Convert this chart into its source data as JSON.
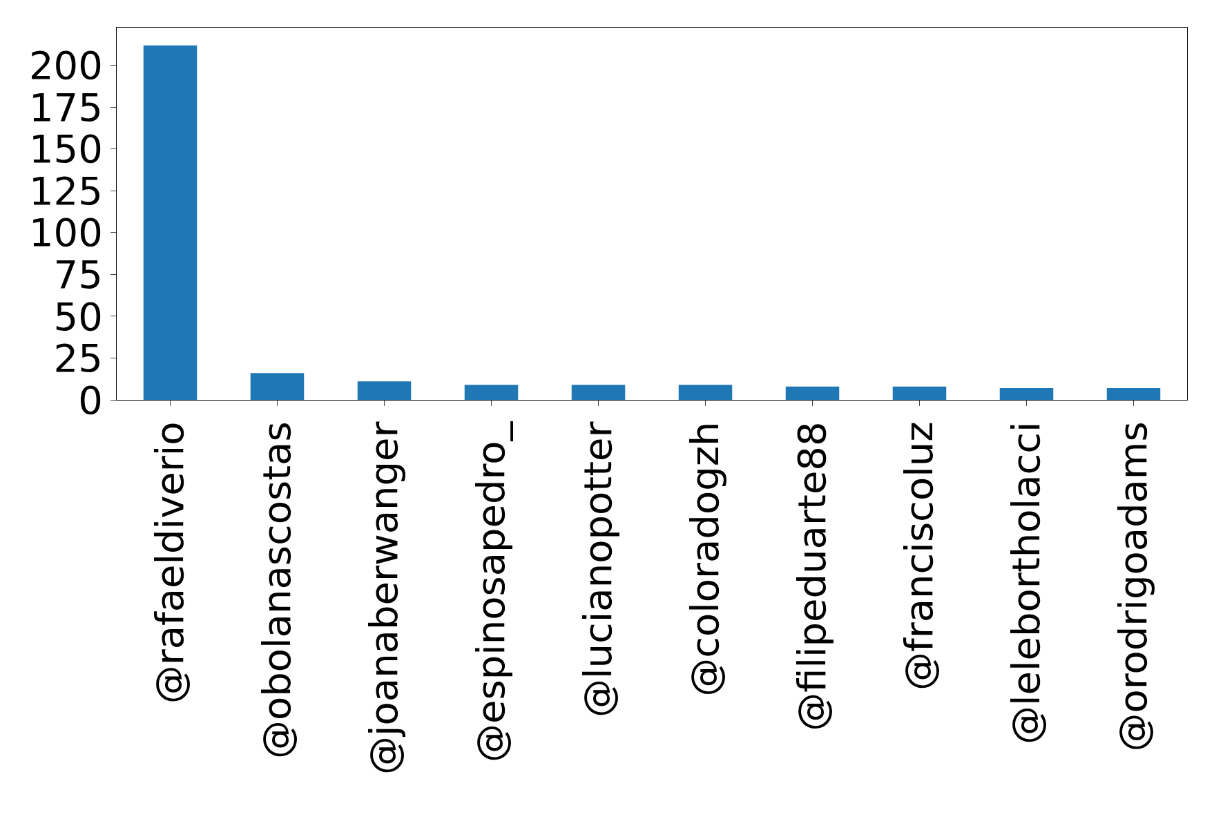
{
  "chart_data": {
    "type": "bar",
    "categories": [
      "@rafaeldiverio",
      "@obolanascostas",
      "@joanaberwanger",
      "@espinosapedro_",
      "@lucianopotter",
      "@coloradogzh",
      "@filipeduarte88",
      "@franciscoluz",
      "@lelebortholacci",
      "@orodrigoadams"
    ],
    "values": [
      212,
      16,
      11,
      9,
      9,
      9,
      8,
      8,
      7,
      7
    ],
    "color": "#1f77b4",
    "ylim": [
      0,
      222.6
    ],
    "yticks": [
      0,
      25,
      50,
      75,
      100,
      125,
      150,
      175,
      200
    ]
  }
}
